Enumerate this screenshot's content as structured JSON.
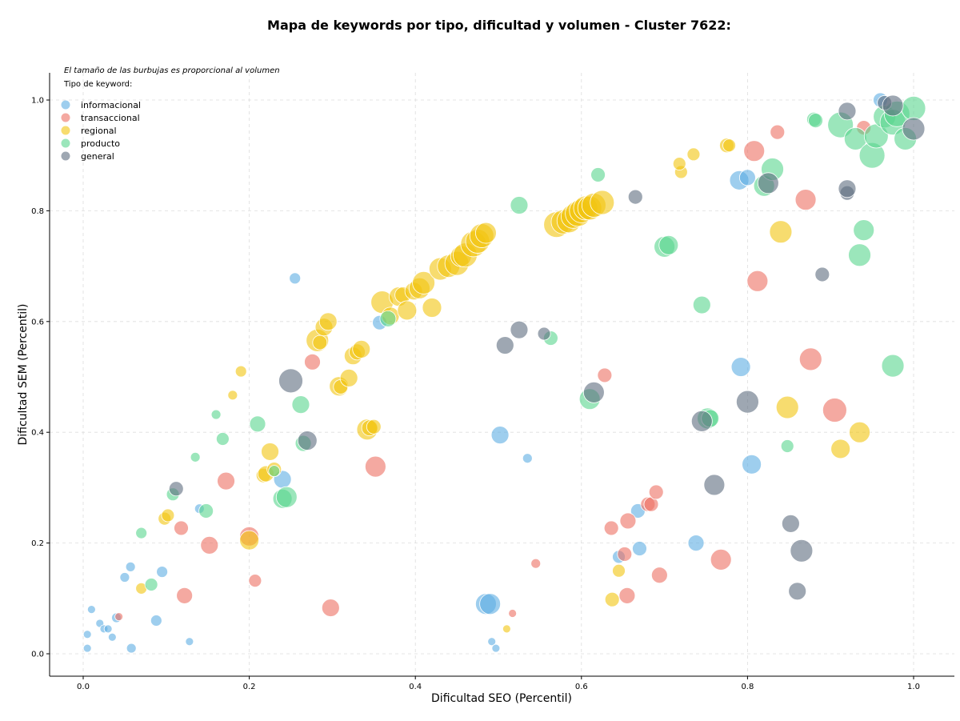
{
  "chart_data": {
    "type": "scatter",
    "title": "Mapa de keywords por tipo, dificultad y volumen - Cluster 7622:",
    "xlabel": "Dificultad SEO (Percentil)",
    "ylabel": "Dificultad SEM (Percentil)",
    "xlim": [
      -0.04,
      1.05
    ],
    "ylim": [
      -0.04,
      1.05
    ],
    "xticks": [
      "0.0",
      "0.2",
      "0.4",
      "0.6",
      "0.8",
      "1.0"
    ],
    "yticks": [
      "0.0",
      "0.2",
      "0.4",
      "0.6",
      "0.8",
      "1.0"
    ],
    "grid": true,
    "legend_position": "top-left",
    "note": "El tamaño de las burbujas es proporcional al volumen",
    "legend_title": "Tipo de keyword:",
    "series": [
      {
        "name": "informacional",
        "color": "#5dade2",
        "points": [
          [
            0.01,
            0.08,
            5
          ],
          [
            0.02,
            0.055,
            5
          ],
          [
            0.005,
            0.035,
            5
          ],
          [
            0.005,
            0.01,
            5
          ],
          [
            0.025,
            0.045,
            5
          ],
          [
            0.03,
            0.045,
            5
          ],
          [
            0.035,
            0.03,
            5
          ],
          [
            0.04,
            0.065,
            6
          ],
          [
            0.05,
            0.138,
            6
          ],
          [
            0.057,
            0.157,
            6
          ],
          [
            0.058,
            0.01,
            6
          ],
          [
            0.088,
            0.06,
            7
          ],
          [
            0.095,
            0.148,
            7
          ],
          [
            0.128,
            0.022,
            5
          ],
          [
            0.14,
            0.262,
            6
          ],
          [
            0.24,
            0.315,
            11
          ],
          [
            0.255,
            0.678,
            7
          ],
          [
            0.357,
            0.598,
            9
          ],
          [
            0.485,
            0.09,
            13
          ],
          [
            0.49,
            0.09,
            13
          ],
          [
            0.492,
            0.022,
            5
          ],
          [
            0.497,
            0.01,
            5
          ],
          [
            0.502,
            0.395,
            11
          ],
          [
            0.535,
            0.353,
            6
          ],
          [
            0.645,
            0.175,
            8
          ],
          [
            0.668,
            0.258,
            9
          ],
          [
            0.67,
            0.19,
            9
          ],
          [
            0.738,
            0.2,
            10
          ],
          [
            0.79,
            0.855,
            12
          ],
          [
            0.792,
            0.518,
            12
          ],
          [
            0.8,
            0.86,
            10
          ],
          [
            0.805,
            0.342,
            12
          ],
          [
            0.96,
            1.0,
            9
          ]
        ]
      },
      {
        "name": "transaccional",
        "color": "#ec7063",
        "points": [
          [
            0.043,
            0.067,
            5
          ],
          [
            0.118,
            0.227,
            9
          ],
          [
            0.122,
            0.105,
            10
          ],
          [
            0.152,
            0.196,
            11
          ],
          [
            0.172,
            0.312,
            11
          ],
          [
            0.2,
            0.212,
            12
          ],
          [
            0.207,
            0.132,
            8
          ],
          [
            0.276,
            0.527,
            10
          ],
          [
            0.298,
            0.083,
            11
          ],
          [
            0.352,
            0.338,
            13
          ],
          [
            0.517,
            0.073,
            5
          ],
          [
            0.545,
            0.163,
            6
          ],
          [
            0.628,
            0.503,
            9
          ],
          [
            0.636,
            0.227,
            9
          ],
          [
            0.652,
            0.18,
            9
          ],
          [
            0.655,
            0.105,
            10
          ],
          [
            0.656,
            0.24,
            10
          ],
          [
            0.68,
            0.27,
            9
          ],
          [
            0.684,
            0.27,
            9
          ],
          [
            0.69,
            0.292,
            9
          ],
          [
            0.694,
            0.142,
            10
          ],
          [
            0.768,
            0.17,
            13
          ],
          [
            0.808,
            0.908,
            13
          ],
          [
            0.812,
            0.673,
            13
          ],
          [
            0.836,
            0.942,
            9
          ],
          [
            0.87,
            0.82,
            13
          ],
          [
            0.876,
            0.532,
            14
          ],
          [
            0.905,
            0.44,
            15
          ],
          [
            0.94,
            0.95,
            9
          ]
        ]
      },
      {
        "name": "regional",
        "color": "#f1c40f",
        "points": [
          [
            0.07,
            0.118,
            7
          ],
          [
            0.098,
            0.244,
            8
          ],
          [
            0.102,
            0.25,
            8
          ],
          [
            0.18,
            0.467,
            6
          ],
          [
            0.19,
            0.51,
            7
          ],
          [
            0.2,
            0.205,
            12
          ],
          [
            0.217,
            0.322,
            9
          ],
          [
            0.22,
            0.325,
            10
          ],
          [
            0.225,
            0.365,
            11
          ],
          [
            0.23,
            0.333,
            9
          ],
          [
            0.282,
            0.566,
            14
          ],
          [
            0.285,
            0.562,
            9
          ],
          [
            0.29,
            0.59,
            11
          ],
          [
            0.295,
            0.6,
            11
          ],
          [
            0.308,
            0.483,
            12
          ],
          [
            0.31,
            0.482,
            9
          ],
          [
            0.32,
            0.498,
            11
          ],
          [
            0.325,
            0.538,
            11
          ],
          [
            0.33,
            0.545,
            10
          ],
          [
            0.335,
            0.55,
            11
          ],
          [
            0.342,
            0.405,
            13
          ],
          [
            0.345,
            0.408,
            10
          ],
          [
            0.35,
            0.41,
            9
          ],
          [
            0.36,
            0.635,
            14
          ],
          [
            0.37,
            0.61,
            11
          ],
          [
            0.38,
            0.645,
            12
          ],
          [
            0.385,
            0.648,
            10
          ],
          [
            0.39,
            0.62,
            12
          ],
          [
            0.398,
            0.655,
            11
          ],
          [
            0.405,
            0.66,
            13
          ],
          [
            0.41,
            0.67,
            14
          ],
          [
            0.42,
            0.625,
            12
          ],
          [
            0.43,
            0.695,
            14
          ],
          [
            0.44,
            0.7,
            14
          ],
          [
            0.45,
            0.705,
            15
          ],
          [
            0.455,
            0.718,
            13
          ],
          [
            0.46,
            0.72,
            15
          ],
          [
            0.47,
            0.74,
            16
          ],
          [
            0.475,
            0.745,
            15
          ],
          [
            0.48,
            0.755,
            15
          ],
          [
            0.485,
            0.76,
            13
          ],
          [
            0.51,
            0.045,
            5
          ],
          [
            0.57,
            0.775,
            16
          ],
          [
            0.578,
            0.78,
            15
          ],
          [
            0.585,
            0.782,
            15
          ],
          [
            0.59,
            0.79,
            15
          ],
          [
            0.596,
            0.795,
            16
          ],
          [
            0.6,
            0.8,
            15
          ],
          [
            0.605,
            0.805,
            15
          ],
          [
            0.61,
            0.805,
            15
          ],
          [
            0.615,
            0.81,
            15
          ],
          [
            0.625,
            0.815,
            15
          ],
          [
            0.645,
            0.15,
            8
          ],
          [
            0.637,
            0.098,
            9
          ],
          [
            0.72,
            0.87,
            8
          ],
          [
            0.718,
            0.885,
            8
          ],
          [
            0.735,
            0.902,
            8
          ],
          [
            0.775,
            0.918,
            9
          ],
          [
            0.778,
            0.918,
            8
          ],
          [
            0.84,
            0.762,
            14
          ],
          [
            0.848,
            0.445,
            14
          ],
          [
            0.912,
            0.37,
            12
          ],
          [
            0.935,
            0.4,
            13
          ]
        ]
      },
      {
        "name": "producto",
        "color": "#58d68d",
        "points": [
          [
            0.07,
            0.218,
            7
          ],
          [
            0.082,
            0.125,
            8
          ],
          [
            0.108,
            0.288,
            8
          ],
          [
            0.135,
            0.355,
            6
          ],
          [
            0.148,
            0.258,
            9
          ],
          [
            0.16,
            0.432,
            6
          ],
          [
            0.168,
            0.388,
            8
          ],
          [
            0.21,
            0.415,
            10
          ],
          [
            0.23,
            0.33,
            7
          ],
          [
            0.24,
            0.28,
            12
          ],
          [
            0.245,
            0.283,
            13
          ],
          [
            0.262,
            0.45,
            11
          ],
          [
            0.265,
            0.38,
            10
          ],
          [
            0.367,
            0.605,
            10
          ],
          [
            0.525,
            0.81,
            11
          ],
          [
            0.563,
            0.57,
            9
          ],
          [
            0.61,
            0.46,
            13
          ],
          [
            0.62,
            0.865,
            9
          ],
          [
            0.7,
            0.735,
            13
          ],
          [
            0.705,
            0.738,
            12
          ],
          [
            0.745,
            0.63,
            11
          ],
          [
            0.752,
            0.425,
            13
          ],
          [
            0.755,
            0.425,
            11
          ],
          [
            0.82,
            0.845,
            13
          ],
          [
            0.83,
            0.875,
            14
          ],
          [
            0.848,
            0.375,
            8
          ],
          [
            0.88,
            0.965,
            9
          ],
          [
            0.882,
            0.963,
            9
          ],
          [
            0.912,
            0.955,
            16
          ],
          [
            0.93,
            0.93,
            14
          ],
          [
            0.935,
            0.72,
            14
          ],
          [
            0.94,
            0.765,
            13
          ],
          [
            0.95,
            0.9,
            16
          ],
          [
            0.955,
            0.935,
            15
          ],
          [
            0.965,
            0.97,
            14
          ],
          [
            0.975,
            0.52,
            14
          ],
          [
            0.975,
            0.96,
            16
          ],
          [
            0.98,
            0.975,
            16
          ],
          [
            0.99,
            0.93,
            14
          ],
          [
            1.0,
            0.985,
            15
          ]
        ]
      },
      {
        "name": "general",
        "color": "#5d6d7e",
        "points": [
          [
            0.112,
            0.298,
            9
          ],
          [
            0.25,
            0.493,
            15
          ],
          [
            0.27,
            0.385,
            12
          ],
          [
            0.508,
            0.557,
            11
          ],
          [
            0.525,
            0.585,
            11
          ],
          [
            0.555,
            0.578,
            8
          ],
          [
            0.615,
            0.472,
            13
          ],
          [
            0.665,
            0.825,
            9
          ],
          [
            0.745,
            0.42,
            13
          ],
          [
            0.76,
            0.305,
            13
          ],
          [
            0.8,
            0.455,
            14
          ],
          [
            0.825,
            0.85,
            13
          ],
          [
            0.852,
            0.235,
            11
          ],
          [
            0.86,
            0.113,
            11
          ],
          [
            0.865,
            0.186,
            14
          ],
          [
            0.89,
            0.685,
            9
          ],
          [
            0.92,
            0.832,
            9
          ],
          [
            0.92,
            0.98,
            11
          ],
          [
            0.92,
            0.84,
            11
          ],
          [
            0.965,
            0.995,
            9
          ],
          [
            0.975,
            0.99,
            13
          ],
          [
            1.0,
            0.948,
            14
          ]
        ]
      }
    ]
  }
}
